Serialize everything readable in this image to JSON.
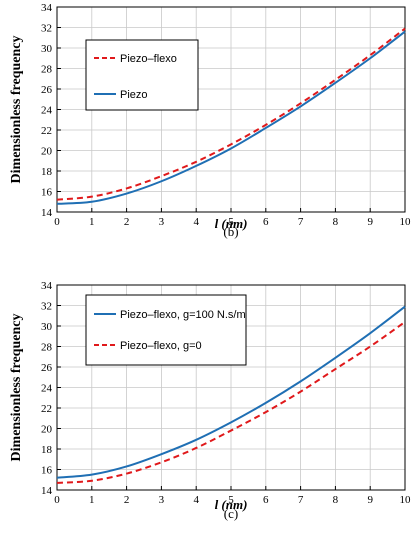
{
  "chart_data": [
    {
      "type": "line",
      "caption": "(b)",
      "xlabel": "l (nm)",
      "ylabel": "Dimensionless frequency",
      "xlim": [
        0,
        10
      ],
      "ylim": [
        14,
        34
      ],
      "xticks": [
        "0",
        "1",
        "2",
        "3",
        "4",
        "5",
        "6",
        "7",
        "8",
        "9",
        "10"
      ],
      "yticks": [
        "14",
        "16",
        "18",
        "20",
        "22",
        "24",
        "26",
        "28",
        "30",
        "32",
        "34"
      ],
      "grid": true,
      "legend_position": "top-left",
      "x": [
        0,
        1,
        2,
        3,
        4,
        5,
        6,
        7,
        8,
        9,
        10
      ],
      "series": [
        {
          "name": "Piezo–flexo",
          "color": "#e0191b",
          "dash": "dashed",
          "values": [
            15.2,
            15.5,
            16.3,
            17.5,
            18.9,
            20.6,
            22.5,
            24.6,
            26.9,
            29.3,
            31.9
          ]
        },
        {
          "name": "Piezo",
          "color": "#1f6fb4",
          "dash": "solid",
          "values": [
            14.8,
            15.0,
            15.8,
            17.0,
            18.5,
            20.2,
            22.2,
            24.3,
            26.6,
            29.0,
            31.6
          ]
        }
      ]
    },
    {
      "type": "line",
      "caption": "(c)",
      "xlabel": "l (nm)",
      "ylabel": "Dimensionless frequency",
      "xlim": [
        0,
        10
      ],
      "ylim": [
        14,
        34
      ],
      "xticks": [
        "0",
        "1",
        "2",
        "3",
        "4",
        "5",
        "6",
        "7",
        "8",
        "9",
        "10"
      ],
      "yticks": [
        "14",
        "16",
        "18",
        "20",
        "22",
        "24",
        "26",
        "28",
        "30",
        "32",
        "34"
      ],
      "grid": true,
      "legend_position": "top-left",
      "x": [
        0,
        1,
        2,
        3,
        4,
        5,
        6,
        7,
        8,
        9,
        10
      ],
      "series": [
        {
          "name": "Piezo–flexo, g=100 N.s/m",
          "color": "#1f6fb4",
          "dash": "solid",
          "values": [
            15.2,
            15.5,
            16.3,
            17.5,
            18.9,
            20.6,
            22.5,
            24.6,
            26.9,
            29.3,
            31.9
          ]
        },
        {
          "name": "Piezo–flexo, g=0",
          "color": "#e0191b",
          "dash": "dashed",
          "values": [
            14.7,
            14.9,
            15.6,
            16.7,
            18.1,
            19.8,
            21.6,
            23.6,
            25.8,
            28.0,
            30.4
          ]
        }
      ]
    }
  ]
}
